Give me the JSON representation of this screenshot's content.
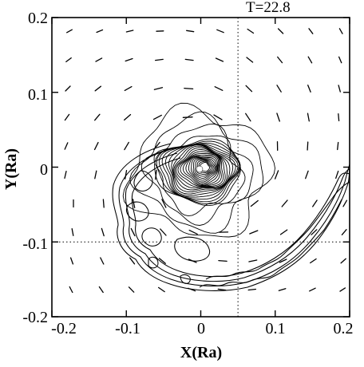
{
  "chart_data": {
    "type": "contour",
    "time_label": "T=22.8",
    "xlabel": "X(Ra)",
    "ylabel": "Y(Ra)",
    "xlim": [
      -0.2,
      0.2
    ],
    "ylim": [
      -0.2,
      0.2
    ],
    "xticks": [
      "-0.2",
      "-0.1",
      "0",
      "0.1",
      "0.2"
    ],
    "yticks": [
      "0.2",
      "0.1",
      "0",
      "-0.1",
      "-0.2"
    ],
    "xtick_values": [
      -0.2,
      -0.1,
      0,
      0.1,
      0.2
    ],
    "ytick_values": [
      0.2,
      0.1,
      0,
      -0.1,
      -0.2
    ],
    "reference_lines": {
      "vertical_x": 0.05,
      "horizontal_y": -0.1
    },
    "center": [
      0.005,
      0.0
    ],
    "vortex_center_radius_limit": 0.075,
    "spiral_tail_outer_end": [
      0.2,
      0.02
    ],
    "velocity_field": "clockwise swirl around the central disc, vectors on a regular grid"
  }
}
